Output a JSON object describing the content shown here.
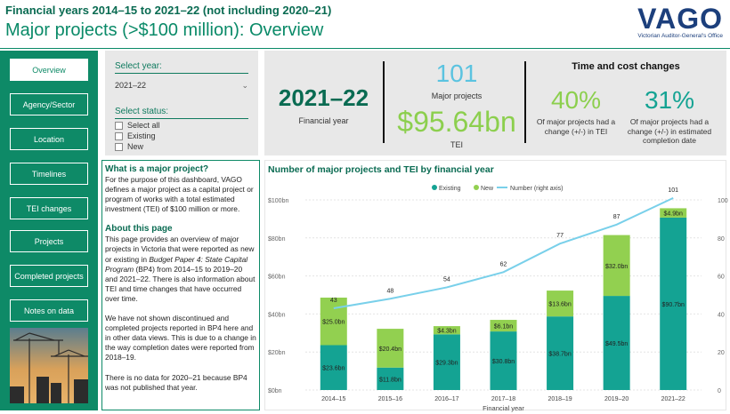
{
  "header": {
    "subtitle": "Financial years 2014–15 to 2021–22 (not including 2020–21)",
    "title": "Major projects (>$100 million): Overview",
    "logo_text": "VAGO",
    "logo_subtext": "Victorian Auditor-General's Office"
  },
  "sidebar": {
    "items": [
      {
        "label": "Overview",
        "active": true
      },
      {
        "label": "Agency/Sector"
      },
      {
        "label": "Location"
      },
      {
        "label": "Timelines"
      },
      {
        "label": "TEI changes"
      },
      {
        "label": "Projects"
      },
      {
        "label": "Completed projects"
      },
      {
        "label": "Notes on data"
      }
    ]
  },
  "filters": {
    "year_label": "Select year:",
    "year_value": "2021–22",
    "status_label": "Select status:",
    "status_options": [
      "Select all",
      "Existing",
      "New"
    ]
  },
  "kpis": {
    "year": "2021–22",
    "year_label": "Financial year",
    "project_count": "101",
    "project_count_label": "Major projects",
    "tei": "$95.64bn",
    "tei_label": "TEI",
    "time_cost_title": "Time and cost changes",
    "tei_change_pct": "40%",
    "tei_change_label": "Of major projects had a change (+/-) in TEI",
    "completion_change_pct": "31%",
    "completion_change_label": "Of major projects had a change (+/-) in estimated completion date"
  },
  "info": {
    "h1": "What is a major project?",
    "p1": "For the purpose of this dashboard, VAGO defines a major project as a capital project or program of works with a total estimated investment (TEI) of $100 million or more.",
    "h2": "About this page",
    "p2_a": "This page provides an overview of major projects in Victoria that were reported as new or existing in ",
    "p2_italic": "Budget Paper 4: State Capital Program",
    "p2_b": " (BP4) from 2014–15 to 2019–20 and 2021–22. There is also information about TEI and time changes that have occurred over time.",
    "p3": "We have not shown discontinued and completed projects reported in BP4 here and in other data views. This is due to a change in the way completion dates were reported from 2018–19.",
    "p4": "There is no data for 2020–21 because BP4 was not published that year."
  },
  "colors": {
    "existing": "#14a393",
    "new": "#92d050",
    "number_line": "#79d0ea",
    "brand_green": "#0e8a67"
  },
  "chart_data": {
    "type": "bar",
    "title": "Number of major projects and TEI by financial year",
    "xlabel": "Financial year",
    "ylabel": "",
    "categories": [
      "2014–15",
      "2015–16",
      "2016–17",
      "2017–18",
      "2018–19",
      "2019–20",
      "2021–22"
    ],
    "series": [
      {
        "name": "Existing",
        "values": [
          23.6,
          11.8,
          29.3,
          30.8,
          38.7,
          49.5,
          90.7
        ],
        "labels": [
          "$23.6bn",
          "$11.8bn",
          "$29.3bn",
          "$30.8bn",
          "$38.7bn",
          "$49.5bn",
          "$90.7bn"
        ]
      },
      {
        "name": "New",
        "values": [
          25.0,
          20.4,
          4.3,
          6.1,
          13.6,
          32.0,
          4.9
        ],
        "labels": [
          "$25.0bn",
          "$20.4bn",
          "$4.3bn",
          "$6.1bn",
          "$13.6bn",
          "$32.0bn",
          "$4.9bn"
        ]
      },
      {
        "name": "Number (right axis)",
        "values": [
          43,
          48,
          54,
          62,
          77,
          87,
          101
        ]
      }
    ],
    "y_ticks": [
      "$0bn",
      "$20bn",
      "$40bn",
      "$60bn",
      "$80bn",
      "$100bn"
    ],
    "y2_ticks": [
      "0",
      "20",
      "40",
      "60",
      "80",
      "100"
    ],
    "ylim": [
      0,
      100
    ],
    "y2lim": [
      0,
      100
    ],
    "legend_position": "top-center",
    "grid": true
  }
}
